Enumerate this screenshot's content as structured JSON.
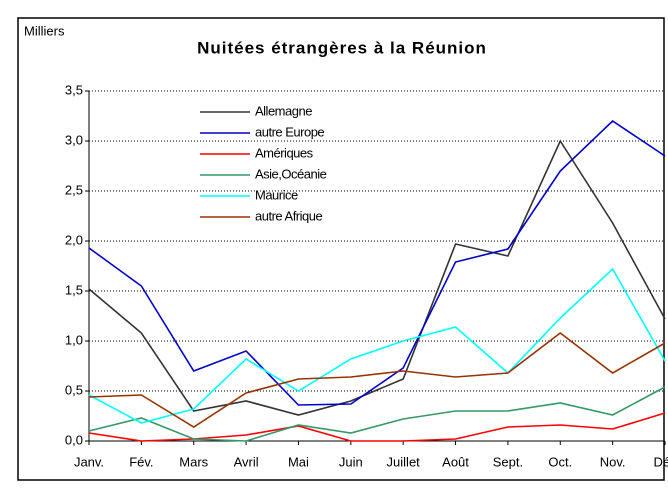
{
  "chart_data": {
    "type": "line",
    "title": "Nuitées étrangères à la Réunion",
    "y_label": "Milliers",
    "categories": [
      "Janv.",
      "Fév.",
      "Mars",
      "Avril",
      "Mai",
      "Juin",
      "Juillet",
      "Août",
      "Sept.",
      "Oct.",
      "Nov.",
      "Déc"
    ],
    "series": [
      {
        "name": "Allemagne",
        "color": "#333333",
        "values": [
          1.52,
          1.08,
          0.3,
          0.4,
          0.26,
          0.4,
          0.62,
          1.97,
          1.85,
          3.0,
          2.18,
          1.22
        ]
      },
      {
        "name": "autre Europe",
        "color": "#0000cc",
        "values": [
          1.93,
          1.55,
          0.7,
          0.9,
          0.36,
          0.37,
          0.73,
          1.79,
          1.92,
          2.7,
          3.2,
          2.85
        ]
      },
      {
        "name": "Amériques",
        "color": "#ff0000",
        "values": [
          0.08,
          0.0,
          0.02,
          0.06,
          0.15,
          0.0,
          0.0,
          0.02,
          0.14,
          0.16,
          0.12,
          0.28
        ]
      },
      {
        "name": "Asie,Océanie",
        "color": "#339966",
        "values": [
          0.1,
          0.23,
          0.02,
          0.0,
          0.16,
          0.08,
          0.22,
          0.3,
          0.3,
          0.38,
          0.26,
          0.54
        ]
      },
      {
        "name": "Maurice",
        "color": "#00ffff",
        "values": [
          0.46,
          0.18,
          0.32,
          0.82,
          0.5,
          0.82,
          1.0,
          1.14,
          0.68,
          1.23,
          1.72,
          0.8
        ]
      },
      {
        "name": "autre Afrique",
        "color": "#993300",
        "values": [
          0.44,
          0.46,
          0.14,
          0.48,
          0.62,
          0.64,
          0.7,
          0.64,
          0.68,
          1.08,
          0.68,
          0.98
        ]
      }
    ],
    "ylim": [
      0,
      3.5
    ],
    "yticks": [
      {
        "value": 0,
        "label": "0,0"
      },
      {
        "value": 0.5,
        "label": "0,5"
      },
      {
        "value": 1,
        "label": "1,0"
      },
      {
        "value": 1.5,
        "label": "1,5"
      },
      {
        "value": 2,
        "label": "2,0"
      },
      {
        "value": 2.5,
        "label": "2,5"
      },
      {
        "value": 3,
        "label": "3,0"
      },
      {
        "value": 3.5,
        "label": "3,5"
      }
    ],
    "grid": true,
    "legend": "upper left"
  }
}
